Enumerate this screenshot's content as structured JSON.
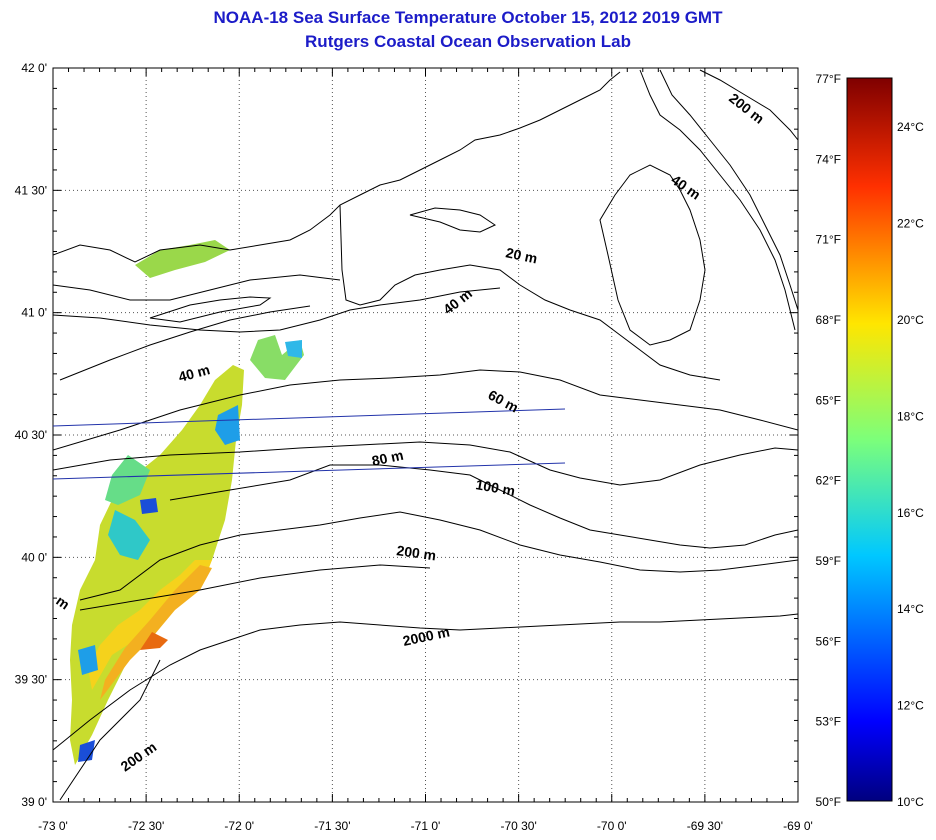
{
  "title": {
    "line1": "NOAA-18 Sea Surface Temperature October 15, 2012 2019 GMT",
    "line2": "Rutgers Coastal Ocean Observation Lab"
  },
  "map": {
    "lon_range": [
      -73.0,
      -69.0
    ],
    "lat_range": [
      39.0,
      42.0
    ],
    "x_ticks": [
      "-73 0'",
      "-72 30'",
      "-72 0'",
      "-71 30'",
      "-71 0'",
      "-70 30'",
      "-70 0'",
      "-69 30'",
      "-69 0'"
    ],
    "y_ticks": [
      "42 0'",
      "41 30'",
      "41 0'",
      "40 30'",
      "40 0'",
      "39 30'",
      "39 0'"
    ],
    "grid": "dotted",
    "contour_labels": [
      "200 m",
      "40 m",
      "20 m",
      "40 m",
      "40 m",
      "60 m",
      "80 m",
      "100 m",
      "200 m",
      "2000 m",
      "200 m",
      "m"
    ]
  },
  "colorbar": {
    "colormap": "jet",
    "range_f": [
      50,
      77
    ],
    "range_c": [
      10,
      25
    ],
    "f_labels": [
      "77°F",
      "74°F",
      "71°F",
      "68°F",
      "65°F",
      "62°F",
      "59°F",
      "56°F",
      "53°F",
      "50°F"
    ],
    "c_labels": [
      "24°C",
      "22°C",
      "20°C",
      "18°C",
      "16°C",
      "14°C",
      "12°C",
      "10°C"
    ]
  },
  "colors": {
    "title": "#1c1cc8",
    "transect": "#2233aa",
    "coast": "#000000"
  }
}
